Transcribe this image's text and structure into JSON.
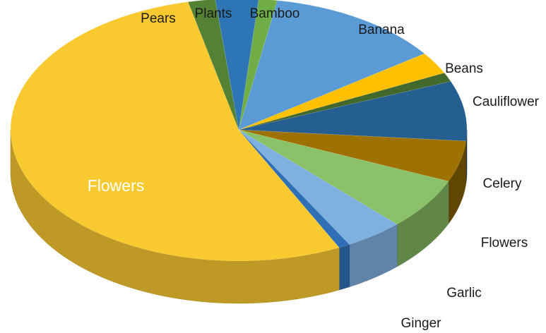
{
  "chart_data": {
    "type": "pie",
    "style": "3d",
    "title": "",
    "legend": "none",
    "categories": [
      "Bamboo",
      "Banana",
      "Beans",
      "Cauliflower",
      "Celery",
      "Celery",
      "Flowers",
      "Garlic",
      "Ginger",
      "Flowers",
      "Pears",
      "Plants"
    ],
    "labels": [
      "Bamboo",
      "Banana",
      "Beans",
      "Cauliflower",
      "",
      "Celery",
      "Flowers",
      "Garlic",
      "Ginger",
      "Flowers",
      "Pears",
      "Plants"
    ],
    "values": [
      1.3,
      12.3,
      2.7,
      1.1,
      7.3,
      5.0,
      6.3,
      4.1,
      0.8,
      53.1,
      1.9,
      3.0
    ],
    "colors": [
      "#70ad47",
      "#5b9bd5",
      "#ffc000",
      "#43682b",
      "#255e91",
      "#9e7202",
      "#8bc168",
      "#7eb0e0",
      "#2f6fb5",
      "#f9c930",
      "#548235",
      "#2e75b6"
    ]
  }
}
